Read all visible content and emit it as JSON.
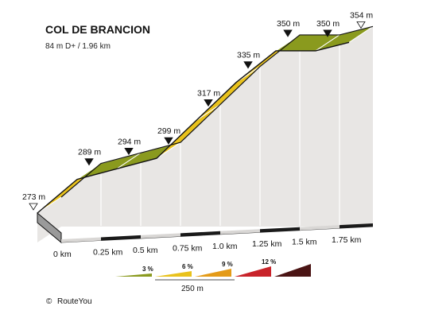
{
  "chart_data": {
    "type": "area",
    "title": "COL DE BRANCION",
    "subtitle": "84 m D+ / 1.96 km",
    "x_unit": "km",
    "y_unit": "m",
    "points": [
      {
        "x": 0.0,
        "y": 273,
        "label": "273 m",
        "marker": "open"
      },
      {
        "x": 0.25,
        "y": 289,
        "label": "289 m",
        "marker": "filled"
      },
      {
        "x": 0.5,
        "y": 294,
        "label": "294 m",
        "marker": "filled"
      },
      {
        "x": 0.75,
        "y": 299,
        "label": "299 m",
        "marker": "filled"
      },
      {
        "x": 1.0,
        "y": 317,
        "label": "317 m",
        "marker": "filled"
      },
      {
        "x": 1.25,
        "y": 335,
        "label": "335 m",
        "marker": "filled"
      },
      {
        "x": 1.5,
        "y": 350,
        "label": "350 m",
        "marker": "filled"
      },
      {
        "x": 1.75,
        "y": 350,
        "label": "350 m",
        "marker": "filled"
      },
      {
        "x": 1.96,
        "y": 354,
        "label": "354 m",
        "marker": "open"
      }
    ],
    "segments": [
      {
        "from": 0.0,
        "to": 0.25,
        "gradient_class": "6"
      },
      {
        "from": 0.25,
        "to": 0.5,
        "gradient_class": "3"
      },
      {
        "from": 0.5,
        "to": 0.75,
        "gradient_class": "3"
      },
      {
        "from": 0.75,
        "to": 1.0,
        "gradient_class": "6"
      },
      {
        "from": 1.0,
        "to": 1.25,
        "gradient_class": "6"
      },
      {
        "from": 1.25,
        "to": 1.5,
        "gradient_class": "6"
      },
      {
        "from": 1.5,
        "to": 1.75,
        "gradient_class": "3"
      },
      {
        "from": 1.75,
        "to": 1.96,
        "gradient_class": "3"
      }
    ],
    "x_ticks": [
      "0 km",
      "0.25 km",
      "0.5 km",
      "0.75 km",
      "1.0 km",
      "1.25 km",
      "1.5 km",
      "1.75 km"
    ],
    "legend": {
      "items": [
        {
          "label": "3 %",
          "color": "#8a9a1e"
        },
        {
          "label": "6 %",
          "color": "#e9c21c"
        },
        {
          "label": "9 %",
          "color": "#e49b18"
        },
        {
          "label": "12 %",
          "color": "#c8232a"
        },
        {
          "label": "",
          "color": "#4a1414"
        }
      ],
      "scale_label": "250 m"
    },
    "colors": {
      "wall": "#e8e6e4",
      "base_side": "#9a9a9a",
      "outline": "#111111"
    }
  },
  "footer": {
    "copyright_symbol": "©",
    "brand": "RouteYou"
  }
}
